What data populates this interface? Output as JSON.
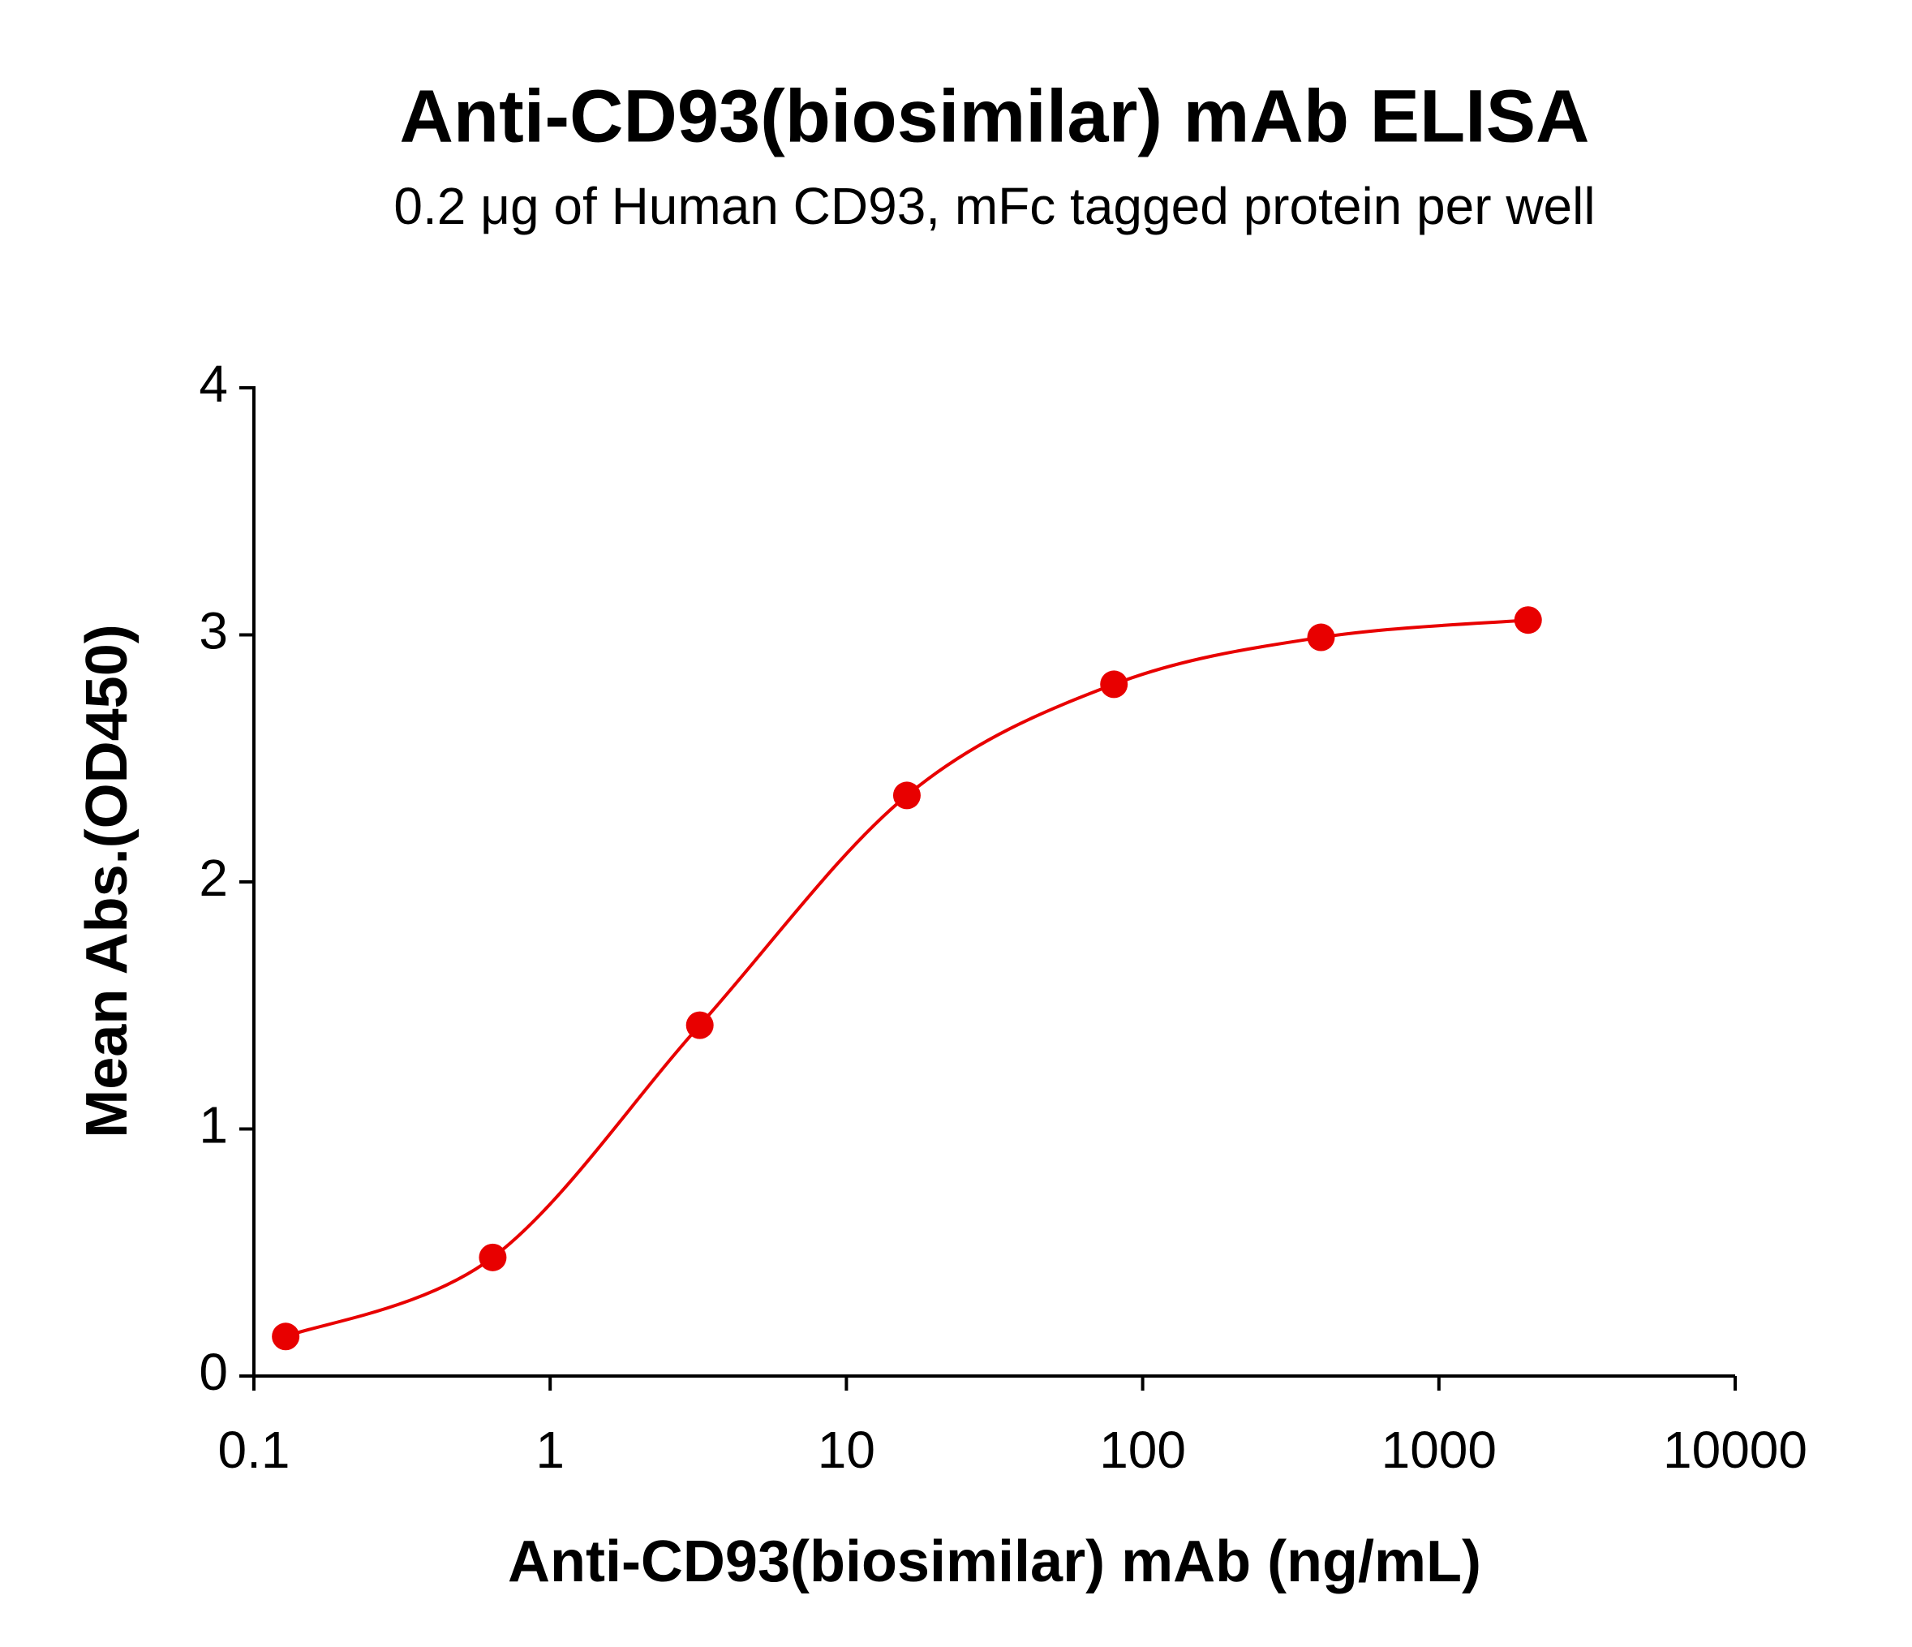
{
  "chart_data": {
    "type": "scatter",
    "title": "Anti-CD93(biosimilar) mAb ELISA",
    "subtitle": "0.2 μg of Human CD93, mFc tagged protein per well",
    "x_label": "Anti-CD93(biosimilar) mAb (ng/mL)",
    "y_label": "Mean Abs.(OD450)",
    "x_scale": "log",
    "x": [
      0.128,
      0.64,
      3.2,
      16,
      80,
      400,
      2000
    ],
    "series": [
      {
        "name": "Anti-CD93(biosimilar) mAb",
        "color": "#e80000",
        "values": [
          0.16,
          0.48,
          1.42,
          2.35,
          2.8,
          2.99,
          3.06
        ]
      }
    ],
    "xlim": [
      0.1,
      10000
    ],
    "xticks": [
      0.1,
      1,
      10,
      100,
      1000,
      10000
    ],
    "ylim": [
      0,
      4
    ],
    "yticks": [
      0,
      1,
      2,
      3,
      4
    ],
    "fit_line": true,
    "grid": false
  }
}
